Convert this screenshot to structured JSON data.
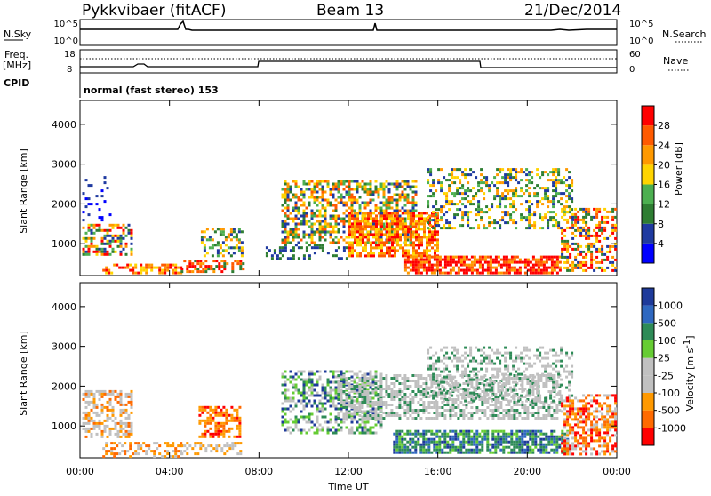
{
  "header": {
    "title": "Pykkvibaer (fitACF)",
    "beam": "Beam 13",
    "date": "21/Dec/2014"
  },
  "noise_panel": {
    "left_label": "N.Sky",
    "left_ticks": [
      "10^5",
      "10^0"
    ],
    "right_label": "N.Search",
    "right_ticks": [
      "10^5",
      "10^0"
    ]
  },
  "freq_panel": {
    "left_label_1": "Freq.",
    "left_label_2": "[MHz]",
    "left_ticks": [
      "18",
      "8"
    ],
    "right_label": "Nave",
    "right_ticks": [
      "60",
      "0"
    ],
    "cpid_label": "CPID",
    "cpid_text": "normal (fast stereo) 153"
  },
  "colors": {
    "power_scale": [
      "#0000ff",
      "#1f3aa0",
      "#2e7d32",
      "#4caf50",
      "#ffd400",
      "#ff9900",
      "#ff5a00",
      "#ff0000"
    ],
    "velocity_scale": [
      "#1e3a9a",
      "#2f68c0",
      "#2e8b57",
      "#66cc33",
      "#c0c0c0",
      "#c0c0c0",
      "#ff9900",
      "#ff6a00",
      "#ff0000"
    ]
  },
  "chart_data": [
    {
      "type": "heatmap",
      "name": "power",
      "ylabel": "Slant Range [km]",
      "ylim": [
        200,
        4600
      ],
      "yticks": [
        "1000",
        "2000",
        "3000",
        "4000"
      ],
      "xlabel": "Time UT",
      "xlim": [
        0,
        24
      ],
      "colorbar_label": "Power [dB]",
      "colorbar_ticks": [
        "4",
        "8",
        "12",
        "16",
        "20",
        "24",
        "28"
      ],
      "colorbar_range": [
        0,
        32
      ]
    },
    {
      "type": "heatmap",
      "name": "velocity",
      "ylabel": "Slant Range [km]",
      "ylim": [
        200,
        4600
      ],
      "yticks": [
        "1000",
        "2000",
        "3000",
        "4000"
      ],
      "xlabel": "Time UT",
      "xlim": [
        0,
        24
      ],
      "colorbar_label": "Velocity [m s",
      "colorbar_label_sup": "-1",
      "colorbar_label_end": "]",
      "colorbar_ticks": [
        "1000",
        "500",
        "100",
        "25",
        "-25",
        "-100",
        "-500",
        "-1000"
      ]
    }
  ],
  "x_axis": {
    "label": "Time UT",
    "ticks": [
      "00:00",
      "04:00",
      "08:00",
      "12:00",
      "16:00",
      "20:00",
      "00:00"
    ]
  }
}
